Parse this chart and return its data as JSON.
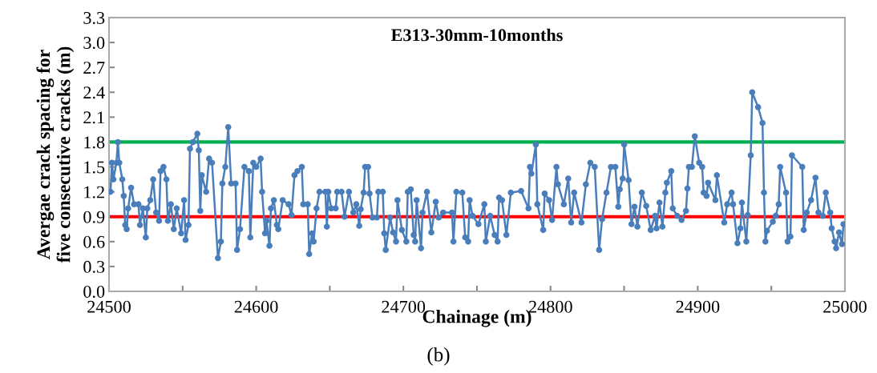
{
  "chart_data": {
    "type": "line",
    "title": "E313-30mm-10months",
    "xlabel": "Chainage (m)",
    "ylabel": "Avergae crack spacing for\nfive consecutive cracks (m)",
    "annotations": [
      "(b)"
    ],
    "marker": "circle",
    "line_style": "solid",
    "grid": false,
    "legend": false,
    "xlim": [
      24500,
      25000
    ],
    "ylim": [
      0,
      3.3
    ],
    "xticks": [
      24500,
      {
        "value": 24550,
        "label": null
      },
      24600,
      {
        "value": 24650,
        "label": null
      },
      24700,
      {
        "value": 24750,
        "label": null
      },
      24800,
      {
        "value": 24850,
        "label": null
      },
      24900,
      {
        "value": 24950,
        "label": null
      },
      25000
    ],
    "yticks": [
      {
        "value": 0,
        "label": "0.0"
      },
      0.3,
      0.6,
      0.9,
      1.2,
      1.5,
      1.8,
      2.1,
      2.4,
      2.7,
      {
        "value": 3,
        "label": "3.0"
      },
      3.3
    ],
    "ref_lines": [
      {
        "axis": "y",
        "value": 1.8,
        "color": "#00b050"
      },
      {
        "axis": "y",
        "value": 0.9,
        "color": "#ff0000"
      }
    ],
    "series": [
      {
        "color": "#4a7ebb",
        "x": [
          24501,
          24502,
          24503,
          24505,
          24506,
          24507,
          24509,
          24510,
          24511,
          24512,
          24513,
          24515,
          24517,
          24520,
          24521,
          24523,
          24525,
          24526,
          24528,
          24530,
          24532,
          24534,
          24535,
          24537,
          24539,
          24540,
          24542,
          24544,
          24546,
          24549,
          24551,
          24552,
          24554,
          24555,
          24557,
          24560,
          24561,
          24562,
          24563,
          24566,
          24568,
          24570,
          24574,
          24576,
          24577,
          24579,
          24581,
          24583,
          24586,
          24587,
          24589,
          24592,
          24595,
          24596,
          24598,
          24600,
          24603,
          24604,
          24606,
          24607,
          24609,
          24610,
          24612,
          24614,
          24615,
          24618,
          24622,
          24624,
          24626,
          24628,
          24631,
          24632,
          24635,
          24636,
          24638,
          24639,
          24641,
          24643,
          24647,
          24648,
          24649,
          24651,
          24654,
          24655,
          24658,
          24660,
          24663,
          24666,
          24668,
          24670,
          24671,
          24673,
          24674,
          24676,
          24677,
          24679,
          24682,
          24683,
          24686,
          24687,
          24688,
          24691,
          24693,
          24695,
          24696,
          24699,
          24702,
          24703,
          24705,
          24707,
          24708,
          24709,
          24712,
          24713,
          24716,
          24719,
          24722,
          24724,
          24727,
          24733,
          24734,
          24736,
          24740,
          24742,
          24744,
          24745,
          24747,
          24751,
          24755,
          24756,
          24759,
          24762,
          24764,
          24765,
          24767,
          24770,
          24773,
          24780,
          24785,
          24786,
          24787,
          24790,
          24791,
          24795,
          24796,
          24799,
          24801,
          24804,
          24805,
          24809,
          24812,
          24814,
          24816,
          24821,
          24824,
          24827,
          24830,
          24833,
          24835,
          24838,
          24841,
          24844,
          24846,
          24847,
          24849,
          24850,
          24853,
          24855,
          24857,
          24859,
          24862,
          24865,
          24868,
          24871,
          24872,
          24874,
          24876,
          24878,
          24879,
          24882,
          24883,
          24886,
          24889,
          24892,
          24893,
          24894,
          24896,
          24898,
          24901,
          24903,
          24904,
          24906,
          24907,
          24912,
          24913,
          24918,
          24920,
          24923,
          24924,
          24927,
          24929,
          24930,
          24933,
          24934,
          24936,
          24937,
          24941,
          24944,
          24945,
          24946,
          24947,
          24951,
          24953,
          24955,
          24956,
          24960,
          24961,
          24963,
          24964,
          24971,
          24972,
          24974,
          24977,
          24980,
          24982,
          24985,
          24987,
          24990,
          24991,
          24993,
          24994,
          24996,
          24998,
          24999
        ],
        "values": [
          1.2,
          1.55,
          1.35,
          1.55,
          1.8,
          1.55,
          1.35,
          1.15,
          0.8,
          0.75,
          1.0,
          1.25,
          1.05,
          1.05,
          0.8,
          1.0,
          0.65,
          1.0,
          1.1,
          1.35,
          0.95,
          0.85,
          1.45,
          1.5,
          1.35,
          0.85,
          1.05,
          0.75,
          1.0,
          0.7,
          1.1,
          0.62,
          0.8,
          1.72,
          1.8,
          1.9,
          1.7,
          0.97,
          1.4,
          1.2,
          1.6,
          1.55,
          0.4,
          0.6,
          1.3,
          1.5,
          1.98,
          1.3,
          1.3,
          0.5,
          0.75,
          1.5,
          1.45,
          0.65,
          1.55,
          1.5,
          1.6,
          1.2,
          0.7,
          0.85,
          0.55,
          1.0,
          1.1,
          0.8,
          0.75,
          1.1,
          1.05,
          0.92,
          1.4,
          1.45,
          1.5,
          1.05,
          1.05,
          0.45,
          0.7,
          0.6,
          1.0,
          1.2,
          1.2,
          0.78,
          1.2,
          1.0,
          1.0,
          1.2,
          1.2,
          0.9,
          1.2,
          0.95,
          1.05,
          0.79,
          0.99,
          1.19,
          1.5,
          1.5,
          1.18,
          0.89,
          0.89,
          1.2,
          1.2,
          0.7,
          0.5,
          0.89,
          0.71,
          0.6,
          1.1,
          0.74,
          0.6,
          1.2,
          1.23,
          0.68,
          0.6,
          1.1,
          0.52,
          0.95,
          1.2,
          0.71,
          1.08,
          0.89,
          0.95,
          0.95,
          0.6,
          1.2,
          1.19,
          0.65,
          0.6,
          1.1,
          0.91,
          0.81,
          1.05,
          0.6,
          0.91,
          0.68,
          0.6,
          1.13,
          1.1,
          0.68,
          1.19,
          1.21,
          1.0,
          1.5,
          1.42,
          1.77,
          1.05,
          0.74,
          1.18,
          1.1,
          0.86,
          1.5,
          1.29,
          1.05,
          1.36,
          0.83,
          1.19,
          0.83,
          1.29,
          1.55,
          1.5,
          0.5,
          0.87,
          1.19,
          1.5,
          1.5,
          1.02,
          1.23,
          1.36,
          1.77,
          1.34,
          0.81,
          1.02,
          0.78,
          1.19,
          1.03,
          0.74,
          0.91,
          0.76,
          1.07,
          0.78,
          1.19,
          1.31,
          1.45,
          1.0,
          0.91,
          0.86,
          0.97,
          1.24,
          1.5,
          1.5,
          1.87,
          1.55,
          1.5,
          1.19,
          1.15,
          1.31,
          1.1,
          1.4,
          0.83,
          1.05,
          1.19,
          1.05,
          0.58,
          0.76,
          1.07,
          0.6,
          0.92,
          1.64,
          2.4,
          2.22,
          2.03,
          1.19,
          0.6,
          0.73,
          0.84,
          0.91,
          1.05,
          1.5,
          1.19,
          0.6,
          0.66,
          1.64,
          1.5,
          0.74,
          0.95,
          1.1,
          1.37,
          0.95,
          0.91,
          1.19,
          0.95,
          0.76,
          0.6,
          0.52,
          0.71,
          0.57,
          0.81
        ]
      }
    ]
  }
}
